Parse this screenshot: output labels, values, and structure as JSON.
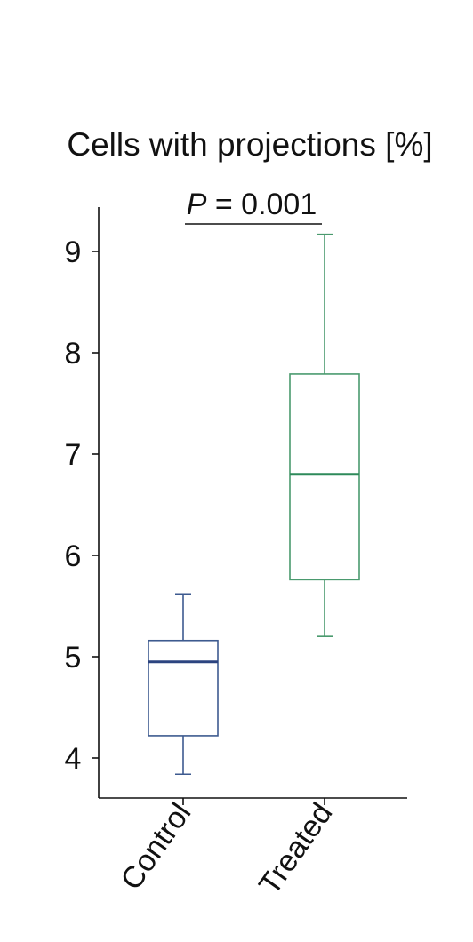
{
  "chart_data": {
    "type": "box",
    "title": "Cells with projections [%]",
    "annotation": {
      "prefix": "P",
      "text": " = 0.001"
    },
    "xlabel": "",
    "ylabel": "",
    "ylim": [
      3.6,
      9.4
    ],
    "yticks": [
      4,
      5,
      6,
      7,
      8,
      9
    ],
    "grid": false,
    "categories": [
      "Control",
      "Treated"
    ],
    "boxes": [
      {
        "category": "Control",
        "min": 3.84,
        "q1": 4.22,
        "median": 4.95,
        "q3": 5.16,
        "max": 5.62,
        "color": "#3d5a8f",
        "median_color": "#2c4480"
      },
      {
        "category": "Treated",
        "min": 5.2,
        "q1": 5.76,
        "median": 6.8,
        "q3": 7.79,
        "max": 9.17,
        "color": "#4a9a6e",
        "median_color": "#2e8a5a"
      }
    ]
  }
}
